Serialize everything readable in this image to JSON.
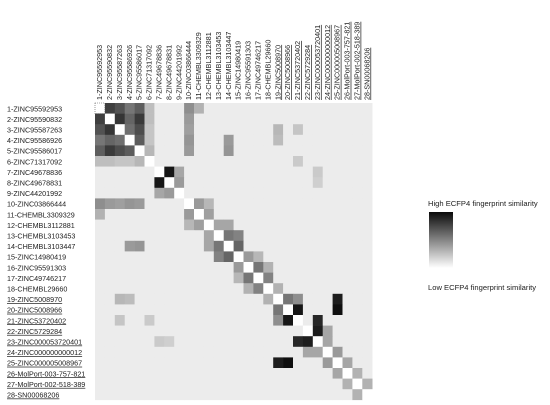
{
  "chart_data": {
    "type": "heatmap",
    "title": "",
    "xlabel": "",
    "ylabel": "",
    "labels": [
      {
        "text": "1-ZINC95592953",
        "underline": false
      },
      {
        "text": "2-ZINC95590832",
        "underline": false
      },
      {
        "text": "3-ZINC95587263",
        "underline": false
      },
      {
        "text": "4-ZINC95586926",
        "underline": false
      },
      {
        "text": "5-ZINC95586017",
        "underline": false
      },
      {
        "text": "6-ZINC71317092",
        "underline": false
      },
      {
        "text": "7-ZINC49678836",
        "underline": false
      },
      {
        "text": "8-ZINC49678831",
        "underline": false
      },
      {
        "text": "9-ZINC44201992",
        "underline": false
      },
      {
        "text": "10-ZINC03866444",
        "underline": false
      },
      {
        "text": "11-CHEMBL3309329",
        "underline": false
      },
      {
        "text": "12-CHEMBL3112881",
        "underline": false
      },
      {
        "text": "13-CHEMBL3103453",
        "underline": false
      },
      {
        "text": "14-CHEMBL3103447",
        "underline": false
      },
      {
        "text": "15-ZINC14980419",
        "underline": false
      },
      {
        "text": "16-ZINC95591303",
        "underline": false
      },
      {
        "text": "17-ZINC49746217",
        "underline": false
      },
      {
        "text": "18-CHEMBL29660",
        "underline": false
      },
      {
        "text": "19-ZINC5008970",
        "underline": true
      },
      {
        "text": "20-ZINC5008966",
        "underline": true
      },
      {
        "text": "21-ZINC53720402",
        "underline": true
      },
      {
        "text": "22-ZINC5729284",
        "underline": true
      },
      {
        "text": "23-ZINC000053720401",
        "underline": true
      },
      {
        "text": "24-ZINC000000000012",
        "underline": true
      },
      {
        "text": "25-ZINC000005008967",
        "underline": true
      },
      {
        "text": "26-MolPort-003-757-821",
        "underline": true
      },
      {
        "text": "27-MolPort-002-518-389",
        "underline": true
      },
      {
        "text": "28-SN00068206",
        "underline": true
      }
    ],
    "value_range": [
      0,
      1
    ],
    "pairs": [
      [
        0,
        1,
        0.78
      ],
      [
        0,
        2,
        0.7
      ],
      [
        0,
        3,
        0.55
      ],
      [
        0,
        4,
        0.65
      ],
      [
        1,
        2,
        0.82
      ],
      [
        1,
        3,
        0.62
      ],
      [
        1,
        4,
        0.8
      ],
      [
        2,
        3,
        0.58
      ],
      [
        2,
        4,
        0.72
      ],
      [
        3,
        4,
        0.66
      ],
      [
        0,
        5,
        0.25
      ],
      [
        1,
        5,
        0.25
      ],
      [
        2,
        5,
        0.22
      ],
      [
        3,
        5,
        0.22
      ],
      [
        4,
        5,
        0.28
      ],
      [
        6,
        7,
        0.95
      ],
      [
        7,
        8,
        0.4
      ],
      [
        6,
        8,
        0.35
      ],
      [
        0,
        9,
        0.45
      ],
      [
        1,
        9,
        0.4
      ],
      [
        2,
        9,
        0.38
      ],
      [
        3,
        9,
        0.42
      ],
      [
        4,
        9,
        0.4
      ],
      [
        0,
        10,
        0.3
      ],
      [
        9,
        10,
        0.4
      ],
      [
        9,
        11,
        0.28
      ],
      [
        10,
        11,
        0.38
      ],
      [
        11,
        12,
        0.35
      ],
      [
        11,
        13,
        0.35
      ],
      [
        12,
        13,
        0.55
      ],
      [
        3,
        13,
        0.4
      ],
      [
        4,
        13,
        0.42
      ],
      [
        12,
        14,
        0.5
      ],
      [
        13,
        14,
        0.62
      ],
      [
        14,
        15,
        0.4
      ],
      [
        14,
        16,
        0.28
      ],
      [
        15,
        16,
        0.55
      ],
      [
        16,
        17,
        0.5
      ],
      [
        15,
        17,
        0.3
      ],
      [
        18,
        19,
        0.55
      ],
      [
        18,
        20,
        0.45
      ],
      [
        19,
        20,
        0.95
      ],
      [
        19,
        24,
        0.98
      ],
      [
        18,
        24,
        0.92
      ],
      [
        20,
        22,
        0.88
      ],
      [
        21,
        22,
        0.92
      ],
      [
        21,
        23,
        0.35
      ],
      [
        22,
        23,
        0.35
      ],
      [
        23,
        24,
        0.4
      ],
      [
        24,
        25,
        0.35
      ],
      [
        25,
        26,
        0.3
      ],
      [
        26,
        27,
        0.3
      ],
      [
        17,
        18,
        0.3
      ],
      [
        2,
        18,
        0.28
      ],
      [
        3,
        18,
        0.26
      ],
      [
        2,
        20,
        0.22
      ],
      [
        5,
        20,
        0.2
      ],
      [
        6,
        22,
        0.2
      ],
      [
        7,
        22,
        0.18
      ]
    ],
    "legend": {
      "high": "High ECFP4 fingerprint similarity",
      "low": "Low ECFP4 fingerprint similarity",
      "high_color": "#0a0a0a",
      "low_color": "#ffffff"
    }
  }
}
